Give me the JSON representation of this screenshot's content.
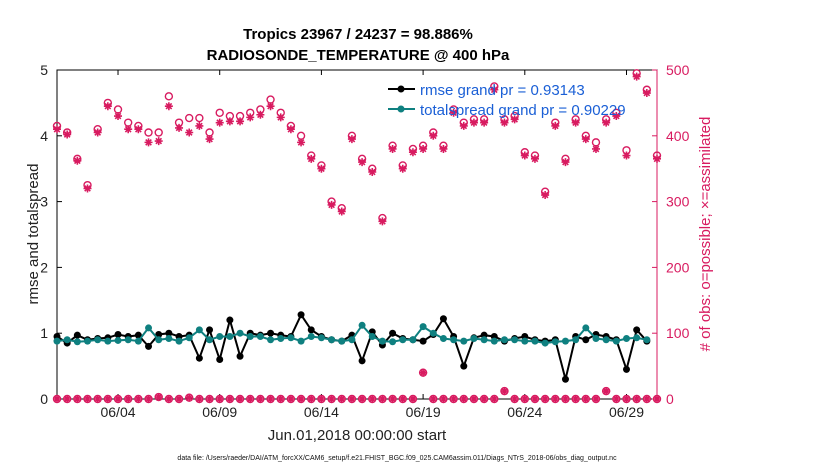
{
  "chart_data": {
    "type": "line",
    "title": "Tropics 23967 / 24237 = 98.886%",
    "subtitle": "RADIOSONDE_TEMPERATURE @ 400 hPa",
    "xlabel": "Jun.01,2018 00:00:00 start",
    "ylabel": "rmse and totalspread",
    "y2label": "# of obs: o=possible; ×=assimilated",
    "xlim": [
      0,
      59
    ],
    "ylim": [
      0,
      5
    ],
    "y2lim": [
      0,
      500
    ],
    "xtick_pos": [
      6,
      16,
      26,
      36,
      46,
      56
    ],
    "xtick_labels": [
      "06/04",
      "06/09",
      "06/14",
      "06/19",
      "06/24",
      "06/29"
    ],
    "ytick_labels": [
      "0",
      "1",
      "2",
      "3",
      "4",
      "5"
    ],
    "y2tick_labels": [
      "0",
      "100",
      "200",
      "300",
      "400",
      "500"
    ],
    "footnote": "data file: /Users/raeder/DAI/ATM_forcXX/CAM6_setup/f.e21.FHIST_BGC.f09_025.CAM6assim.011/Diags_NTrS_2018-06/obs_diag_output.nc",
    "series": [
      {
        "name": "rmse",
        "legend": "rmse grand pr = 0.93143",
        "color": "#000000",
        "points": [
          [
            0,
            0.95
          ],
          [
            1,
            0.85
          ],
          [
            2,
            0.97
          ],
          [
            3,
            0.9
          ],
          [
            4,
            0.92
          ],
          [
            5,
            0.93
          ],
          [
            6,
            0.98
          ],
          [
            7,
            0.95
          ],
          [
            8,
            0.97
          ],
          [
            9,
            0.8
          ],
          [
            10,
            0.98
          ],
          [
            11,
            1.0
          ],
          [
            12,
            0.95
          ],
          [
            13,
            0.97
          ],
          [
            14,
            0.62
          ],
          [
            15,
            1.05
          ],
          [
            16,
            0.6
          ],
          [
            17,
            1.2
          ],
          [
            18,
            0.65
          ],
          [
            19,
            1.0
          ],
          [
            20,
            0.97
          ],
          [
            21,
            1.0
          ],
          [
            22,
            0.97
          ],
          [
            23,
            0.95
          ],
          [
            24,
            1.28
          ],
          [
            25,
            1.05
          ],
          [
            26,
            0.95
          ],
          [
            27,
            0.9
          ],
          [
            28,
            0.88
          ],
          [
            29,
            0.97
          ],
          [
            30,
            0.58
          ],
          [
            31,
            1.02
          ],
          [
            32,
            0.82
          ],
          [
            33,
            1.0
          ],
          [
            34,
            0.92
          ],
          [
            35,
            0.9
          ],
          [
            36,
            0.88
          ],
          [
            37,
            0.98
          ],
          [
            38,
            1.22
          ],
          [
            39,
            0.95
          ],
          [
            40,
            0.5
          ],
          [
            41,
            0.93
          ],
          [
            42,
            0.97
          ],
          [
            43,
            0.95
          ],
          [
            44,
            0.88
          ],
          [
            45,
            0.92
          ],
          [
            46,
            0.95
          ],
          [
            47,
            0.9
          ],
          [
            48,
            0.88
          ],
          [
            49,
            0.9
          ],
          [
            50,
            0.3
          ],
          [
            51,
            0.95
          ],
          [
            52,
            0.9
          ],
          [
            53,
            0.98
          ],
          [
            54,
            0.95
          ],
          [
            55,
            0.9
          ],
          [
            56,
            0.45
          ],
          [
            57,
            1.05
          ],
          [
            58,
            0.88
          ]
        ]
      },
      {
        "name": "totalspread",
        "legend": "totalspread grand pr = 0.90229",
        "color": "#0f8080",
        "points": [
          [
            0,
            0.88
          ],
          [
            1,
            0.9
          ],
          [
            2,
            0.87
          ],
          [
            3,
            0.88
          ],
          [
            4,
            0.9
          ],
          [
            5,
            0.88
          ],
          [
            6,
            0.89
          ],
          [
            7,
            0.9
          ],
          [
            8,
            0.88
          ],
          [
            9,
            1.08
          ],
          [
            10,
            0.9
          ],
          [
            11,
            0.92
          ],
          [
            12,
            0.88
          ],
          [
            13,
            0.93
          ],
          [
            14,
            1.05
          ],
          [
            15,
            0.9
          ],
          [
            16,
            0.95
          ],
          [
            17,
            0.95
          ],
          [
            18,
            1.0
          ],
          [
            19,
            0.95
          ],
          [
            20,
            0.95
          ],
          [
            21,
            0.9
          ],
          [
            22,
            0.92
          ],
          [
            23,
            0.93
          ],
          [
            24,
            0.88
          ],
          [
            25,
            0.95
          ],
          [
            26,
            0.93
          ],
          [
            27,
            0.9
          ],
          [
            28,
            0.88
          ],
          [
            29,
            0.9
          ],
          [
            30,
            1.12
          ],
          [
            31,
            0.95
          ],
          [
            32,
            0.88
          ],
          [
            33,
            0.87
          ],
          [
            34,
            0.9
          ],
          [
            35,
            0.9
          ],
          [
            36,
            1.1
          ],
          [
            37,
            1.0
          ],
          [
            38,
            0.92
          ],
          [
            39,
            0.9
          ],
          [
            40,
            0.88
          ],
          [
            41,
            0.92
          ],
          [
            42,
            0.9
          ],
          [
            43,
            0.88
          ],
          [
            44,
            0.9
          ],
          [
            45,
            0.9
          ],
          [
            46,
            0.88
          ],
          [
            47,
            0.88
          ],
          [
            48,
            0.85
          ],
          [
            49,
            0.87
          ],
          [
            50,
            0.88
          ],
          [
            51,
            0.9
          ],
          [
            52,
            1.08
          ],
          [
            53,
            0.92
          ],
          [
            54,
            0.9
          ],
          [
            55,
            0.88
          ],
          [
            56,
            0.92
          ],
          [
            57,
            0.93
          ],
          [
            58,
            0.9
          ]
        ]
      },
      {
        "name": "possible",
        "marker": "o",
        "color": "#d81b60",
        "axis": "right",
        "points": [
          [
            0,
            415
          ],
          [
            1,
            405
          ],
          [
            2,
            365
          ],
          [
            3,
            325
          ],
          [
            4,
            410
          ],
          [
            5,
            450
          ],
          [
            6,
            440
          ],
          [
            7,
            420
          ],
          [
            8,
            415
          ],
          [
            9,
            405
          ],
          [
            10,
            405
          ],
          [
            11,
            460
          ],
          [
            12,
            420
          ],
          [
            13,
            427
          ],
          [
            14,
            427
          ],
          [
            15,
            405
          ],
          [
            16,
            435
          ],
          [
            17,
            430
          ],
          [
            18,
            430
          ],
          [
            19,
            435
          ],
          [
            20,
            440
          ],
          [
            21,
            455
          ],
          [
            22,
            435
          ],
          [
            23,
            415
          ],
          [
            24,
            400
          ],
          [
            25,
            370
          ],
          [
            26,
            355
          ],
          [
            27,
            300
          ],
          [
            28,
            290
          ],
          [
            29,
            400
          ],
          [
            30,
            365
          ],
          [
            31,
            350
          ],
          [
            32,
            275
          ],
          [
            33,
            385
          ],
          [
            34,
            355
          ],
          [
            35,
            380
          ],
          [
            36,
            385
          ],
          [
            37,
            405
          ],
          [
            38,
            385
          ],
          [
            39,
            440
          ],
          [
            40,
            420
          ],
          [
            41,
            425
          ],
          [
            42,
            425
          ],
          [
            43,
            475
          ],
          [
            44,
            425
          ],
          [
            45,
            430
          ],
          [
            46,
            375
          ],
          [
            47,
            370
          ],
          [
            48,
            315
          ],
          [
            49,
            420
          ],
          [
            50,
            365
          ],
          [
            51,
            425
          ],
          [
            52,
            400
          ],
          [
            53,
            390
          ],
          [
            54,
            425
          ],
          [
            55,
            435
          ],
          [
            56,
            378
          ],
          [
            57,
            495
          ],
          [
            58,
            470
          ],
          [
            59,
            370
          ]
        ]
      },
      {
        "name": "assimilated",
        "marker": "*",
        "color": "#d81b60",
        "axis": "right",
        "points": [
          [
            0,
            410
          ],
          [
            1,
            402
          ],
          [
            2,
            362
          ],
          [
            3,
            320
          ],
          [
            4,
            405
          ],
          [
            5,
            445
          ],
          [
            6,
            430
          ],
          [
            7,
            410
          ],
          [
            8,
            410
          ],
          [
            9,
            390
          ],
          [
            10,
            392
          ],
          [
            11,
            445
          ],
          [
            12,
            412
          ],
          [
            13,
            405
          ],
          [
            14,
            415
          ],
          [
            15,
            395
          ],
          [
            16,
            420
          ],
          [
            17,
            422
          ],
          [
            18,
            422
          ],
          [
            19,
            428
          ],
          [
            20,
            432
          ],
          [
            21,
            445
          ],
          [
            22,
            428
          ],
          [
            23,
            410
          ],
          [
            24,
            390
          ],
          [
            25,
            365
          ],
          [
            26,
            350
          ],
          [
            27,
            295
          ],
          [
            28,
            285
          ],
          [
            29,
            395
          ],
          [
            30,
            360
          ],
          [
            31,
            345
          ],
          [
            32,
            270
          ],
          [
            33,
            380
          ],
          [
            34,
            350
          ],
          [
            35,
            375
          ],
          [
            36,
            380
          ],
          [
            37,
            400
          ],
          [
            38,
            380
          ],
          [
            39,
            435
          ],
          [
            40,
            415
          ],
          [
            41,
            420
          ],
          [
            42,
            420
          ],
          [
            43,
            470
          ],
          [
            44,
            420
          ],
          [
            45,
            425
          ],
          [
            46,
            370
          ],
          [
            47,
            365
          ],
          [
            48,
            310
          ],
          [
            49,
            415
          ],
          [
            50,
            360
          ],
          [
            51,
            420
          ],
          [
            52,
            395
          ],
          [
            53,
            380
          ],
          [
            54,
            420
          ],
          [
            55,
            430
          ],
          [
            56,
            370
          ],
          [
            57,
            490
          ],
          [
            58,
            465
          ],
          [
            59,
            365
          ]
        ]
      },
      {
        "name": "possible_zero",
        "marker": "o",
        "color": "#d81b60",
        "axis": "right",
        "points": [
          [
            0,
            0
          ],
          [
            1,
            0
          ],
          [
            2,
            0
          ],
          [
            3,
            0
          ],
          [
            4,
            0
          ],
          [
            5,
            0
          ],
          [
            6,
            0
          ],
          [
            7,
            0
          ],
          [
            8,
            0
          ],
          [
            9,
            0
          ],
          [
            10,
            3
          ],
          [
            11,
            0
          ],
          [
            12,
            0
          ],
          [
            13,
            2
          ],
          [
            14,
            0
          ],
          [
            15,
            0
          ],
          [
            16,
            0
          ],
          [
            17,
            0
          ],
          [
            18,
            0
          ],
          [
            19,
            0
          ],
          [
            20,
            0
          ],
          [
            21,
            0
          ],
          [
            22,
            0
          ],
          [
            23,
            0
          ],
          [
            24,
            0
          ],
          [
            25,
            0
          ],
          [
            26,
            0
          ],
          [
            27,
            0
          ],
          [
            28,
            0
          ],
          [
            29,
            0
          ],
          [
            30,
            0
          ],
          [
            31,
            0
          ],
          [
            32,
            0
          ],
          [
            33,
            0
          ],
          [
            34,
            0
          ],
          [
            35,
            0
          ],
          [
            36,
            40
          ],
          [
            37,
            0
          ],
          [
            38,
            0
          ],
          [
            39,
            0
          ],
          [
            40,
            0
          ],
          [
            41,
            0
          ],
          [
            42,
            0
          ],
          [
            43,
            0
          ],
          [
            44,
            12
          ],
          [
            45,
            0
          ],
          [
            46,
            0
          ],
          [
            47,
            0
          ],
          [
            48,
            0
          ],
          [
            49,
            0
          ],
          [
            50,
            0
          ],
          [
            51,
            0
          ],
          [
            52,
            0
          ],
          [
            53,
            0
          ],
          [
            54,
            12
          ],
          [
            55,
            0
          ],
          [
            56,
            0
          ],
          [
            57,
            0
          ],
          [
            58,
            0
          ],
          [
            59,
            0
          ]
        ]
      }
    ]
  }
}
